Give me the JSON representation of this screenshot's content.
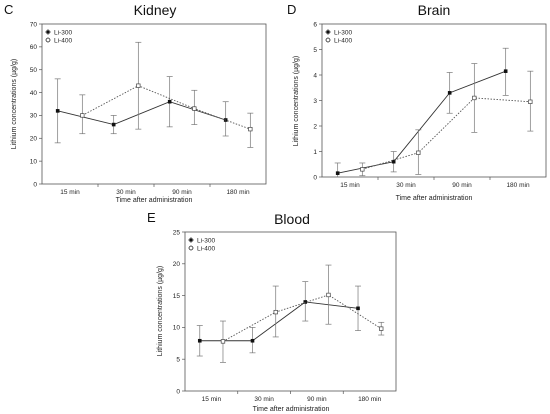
{
  "chart_data": [
    {
      "id": "C",
      "type": "line",
      "panel_letter": "C",
      "title": "Kidney",
      "xlabel": "Time after administration",
      "ylabel": "Lithium concentrations (µg/g)",
      "ylim": [
        0,
        70
      ],
      "yticks": [
        0,
        10,
        20,
        30,
        40,
        50,
        60,
        70
      ],
      "categories": [
        "15 min",
        "30 min",
        "90 min",
        "180 min"
      ],
      "legend_position": "top-left",
      "series": [
        {
          "name": "Li-300",
          "style": "solid",
          "marker": "filled-square",
          "values": [
            32,
            26,
            36,
            28
          ],
          "lower": [
            18,
            22,
            25,
            21
          ],
          "upper": [
            46,
            30,
            47,
            36
          ]
        },
        {
          "name": "Li-400",
          "style": "dotted",
          "marker": "open-square",
          "values": [
            30,
            43,
            33,
            24
          ],
          "lower": [
            22,
            24,
            26,
            16
          ],
          "upper": [
            39,
            62,
            41,
            31
          ]
        }
      ]
    },
    {
      "id": "D",
      "type": "line",
      "panel_letter": "D",
      "title": "Brain",
      "xlabel": "Time after administration",
      "ylabel": "Lithium concentrations (µg/g)",
      "ylim": [
        0,
        6
      ],
      "yticks": [
        0,
        1,
        2,
        3,
        4,
        5,
        6
      ],
      "categories": [
        "15 min",
        "30 min",
        "90 min",
        "180 min"
      ],
      "legend_position": "top-left",
      "series": [
        {
          "name": "Li-300",
          "style": "solid",
          "marker": "filled-square",
          "values": [
            0.15,
            0.6,
            3.3,
            4.15
          ],
          "lower": [
            0.0,
            0.2,
            2.5,
            3.2
          ],
          "upper": [
            0.55,
            1.0,
            4.1,
            5.05
          ]
        },
        {
          "name": "Li-400",
          "style": "dotted",
          "marker": "open-square",
          "values": [
            0.3,
            0.95,
            3.1,
            2.95
          ],
          "lower": [
            0.05,
            0.1,
            1.75,
            1.8
          ],
          "upper": [
            0.55,
            1.85,
            4.45,
            4.15
          ]
        }
      ]
    },
    {
      "id": "E",
      "type": "line",
      "panel_letter": "E",
      "title": "Blood",
      "xlabel": "Time after administration",
      "ylabel": "Lithium concentrations (µg/g)",
      "ylim": [
        0,
        25
      ],
      "yticks": [
        0,
        5,
        10,
        15,
        20,
        25
      ],
      "categories": [
        "15 min",
        "30 min",
        "90 min",
        "180 min"
      ],
      "legend_position": "top-left",
      "series": [
        {
          "name": "Li-300",
          "style": "solid",
          "marker": "filled-square",
          "values": [
            7.9,
            7.9,
            14.0,
            13.0
          ],
          "lower": [
            5.5,
            6.0,
            11.0,
            9.5
          ],
          "upper": [
            10.3,
            10.0,
            17.2,
            16.5
          ]
        },
        {
          "name": "Li-400",
          "style": "dotted",
          "marker": "open-square",
          "values": [
            7.8,
            12.4,
            15.1,
            9.8
          ],
          "lower": [
            4.5,
            8.5,
            10.5,
            8.8
          ],
          "upper": [
            11.0,
            16.5,
            19.8,
            10.8
          ]
        }
      ]
    }
  ]
}
